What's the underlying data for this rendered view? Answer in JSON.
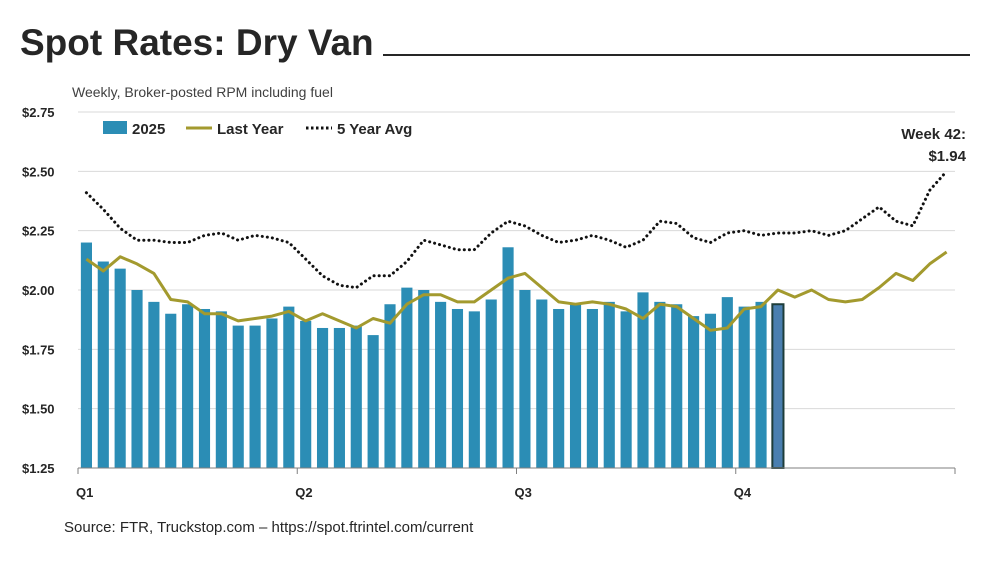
{
  "title": "Spot Rates: Dry Van",
  "subtitle": "Weekly, Broker-posted RPM including fuel",
  "source": "Source: FTR, Truckstop.com – https://spot.ftrintel.com/current",
  "annotation": {
    "line1": "Week 42:",
    "line2": "$1.94"
  },
  "chart_data": {
    "type": "bar",
    "title": "Spot Rates: Dry Van",
    "subtitle": "Weekly, Broker-posted RPM including fuel",
    "xlabel": "",
    "ylabel": "",
    "ylim": [
      1.25,
      2.75
    ],
    "y_ticks": [
      "$1.25",
      "$1.50",
      "$1.75",
      "$2.00",
      "$2.25",
      "$2.50",
      "$2.75"
    ],
    "y_tick_values": [
      1.25,
      1.5,
      1.75,
      2.0,
      2.25,
      2.5,
      2.75
    ],
    "x_ticks": [
      "Q1",
      "Q2",
      "Q3",
      "Q4"
    ],
    "weeks": 52,
    "grid": true,
    "legend_position": "top-left",
    "colors": {
      "bars": "#2b8db5",
      "highlight_bar": "#4a7fb0",
      "highlight_outline": "#1e3d3a",
      "last_year": "#a39a2e",
      "five_year": "#111111"
    },
    "series": [
      {
        "name": "2025",
        "type": "bar",
        "values": [
          2.2,
          2.12,
          2.09,
          2.0,
          1.95,
          1.9,
          1.94,
          1.92,
          1.91,
          1.85,
          1.85,
          1.88,
          1.93,
          1.87,
          1.84,
          1.84,
          1.85,
          1.81,
          1.94,
          2.01,
          2.0,
          1.95,
          1.92,
          1.91,
          1.96,
          2.18,
          2.0,
          1.96,
          1.92,
          1.94,
          1.92,
          1.95,
          1.91,
          1.99,
          1.95,
          1.94,
          1.89,
          1.9,
          1.97,
          1.93,
          1.95,
          1.94
        ]
      },
      {
        "name": "Last Year",
        "type": "line",
        "values": [
          2.13,
          2.08,
          2.14,
          2.11,
          2.07,
          1.96,
          1.95,
          1.9,
          1.9,
          1.87,
          1.88,
          1.89,
          1.91,
          1.87,
          1.9,
          1.87,
          1.84,
          1.88,
          1.86,
          1.94,
          1.98,
          1.98,
          1.95,
          1.95,
          2.0,
          2.05,
          2.07,
          2.01,
          1.95,
          1.94,
          1.95,
          1.94,
          1.92,
          1.88,
          1.94,
          1.93,
          1.88,
          1.83,
          1.84,
          1.92,
          1.93,
          2.0,
          1.97,
          2.0,
          1.96,
          1.95,
          1.96,
          2.01,
          2.07,
          2.04,
          2.11,
          2.16
        ]
      },
      {
        "name": "5 Year Avg",
        "type": "line",
        "style": "dotted",
        "values": [
          2.41,
          2.34,
          2.26,
          2.21,
          2.21,
          2.2,
          2.2,
          2.23,
          2.24,
          2.21,
          2.23,
          2.22,
          2.2,
          2.13,
          2.06,
          2.02,
          2.01,
          2.06,
          2.06,
          2.12,
          2.21,
          2.19,
          2.17,
          2.17,
          2.24,
          2.29,
          2.27,
          2.23,
          2.2,
          2.21,
          2.23,
          2.21,
          2.18,
          2.21,
          2.29,
          2.28,
          2.22,
          2.2,
          2.24,
          2.25,
          2.23,
          2.24,
          2.24,
          2.25,
          2.23,
          2.25,
          2.3,
          2.35,
          2.29,
          2.27,
          2.42,
          2.5
        ]
      }
    ]
  }
}
